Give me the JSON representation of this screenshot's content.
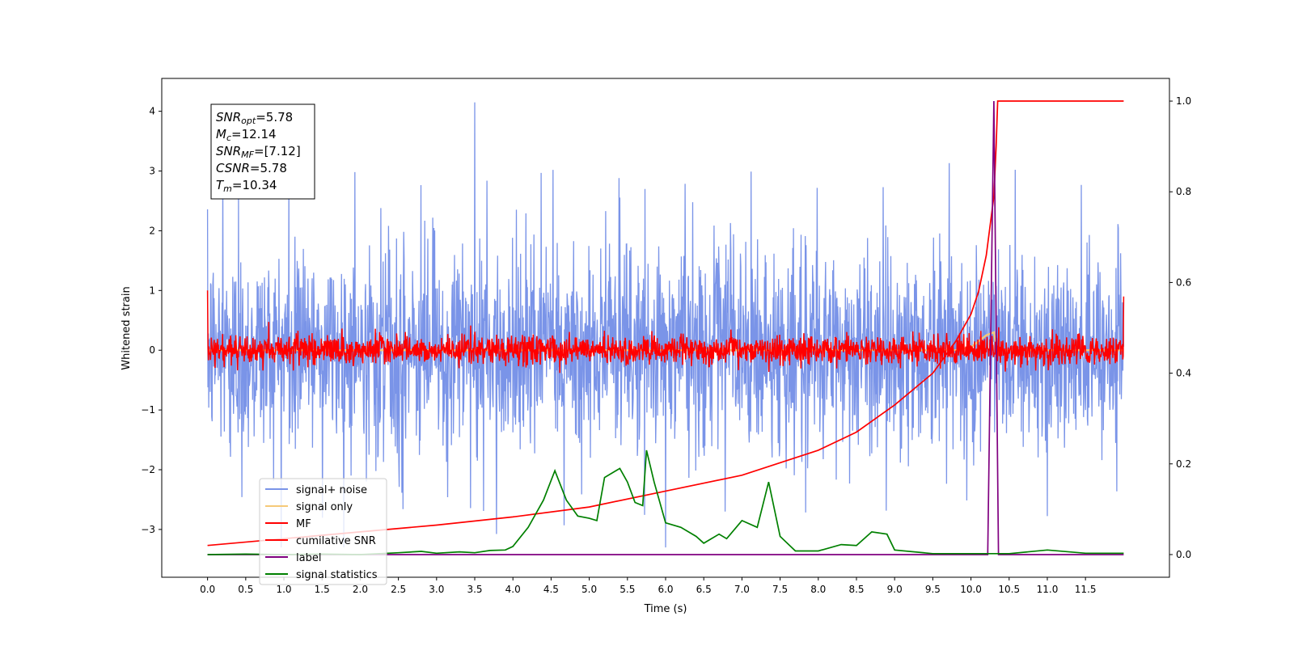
{
  "chart_data": {
    "type": "line",
    "xlabel": "Time (s)",
    "ylabel": "Whitened strain",
    "xlim": [
      -0.6,
      12.6
    ],
    "ylim": [
      -3.8,
      4.55
    ],
    "y2lim": [
      -0.05,
      1.05
    ],
    "x_ticks": [
      "0.0",
      "0.5",
      "1.0",
      "1.5",
      "2.0",
      "2.5",
      "3.0",
      "3.5",
      "4.0",
      "4.5",
      "5.0",
      "5.5",
      "6.0",
      "6.5",
      "7.0",
      "7.5",
      "8.0",
      "8.5",
      "9.0",
      "9.5",
      "10.0",
      "10.5",
      "11.0",
      "11.5"
    ],
    "y_ticks": [
      "4",
      "3",
      "2",
      "1",
      "0",
      "−1",
      "−2",
      "−3"
    ],
    "y2_ticks": [
      "1.0",
      "0.8",
      "0.6",
      "0.4",
      "0.2",
      "0.0"
    ],
    "grid": false,
    "legend_position": "lower-left",
    "annotation": [
      {
        "main": "SNR",
        "sub": "opt",
        "value": "=5.78"
      },
      {
        "main": "M",
        "sub": "c",
        "value": "=12.14"
      },
      {
        "main": "SNR",
        "sub": "MF",
        "value": "=[7.12]"
      },
      {
        "main": "CSNR",
        "sub": "",
        "value": "=5.78"
      },
      {
        "main": "T",
        "sub": "m",
        "value": "=10.34"
      }
    ],
    "series": [
      {
        "name": "signal+ noise",
        "color": "#7a94e8",
        "axis": "left",
        "x_range": [
          0,
          12
        ],
        "amplitude_std": 0.85,
        "max": 4.15,
        "min": -3.3
      },
      {
        "name": "signal only",
        "color": "#f5c978",
        "axis": "left",
        "points": [
          [
            0,
            0
          ],
          [
            9.8,
            0
          ],
          [
            10.0,
            0.05
          ],
          [
            10.2,
            0.25
          ],
          [
            10.3,
            0.3
          ],
          [
            10.34,
            0.0
          ],
          [
            10.36,
            0
          ],
          [
            12,
            0
          ]
        ]
      },
      {
        "name": "MF",
        "color": "#ff0000",
        "axis": "left",
        "x_range": [
          0,
          12
        ],
        "amplitude_std": 0.12,
        "start_value": 1.0,
        "end_value": 0.9
      },
      {
        "name": "cumilative SNR",
        "color": "#ff0000",
        "axis": "right",
        "points": [
          [
            0,
            0.02
          ],
          [
            1,
            0.035
          ],
          [
            2,
            0.05
          ],
          [
            3,
            0.065
          ],
          [
            4,
            0.083
          ],
          [
            5,
            0.105
          ],
          [
            6,
            0.14
          ],
          [
            7,
            0.175
          ],
          [
            8,
            0.23
          ],
          [
            8.5,
            0.27
          ],
          [
            9,
            0.33
          ],
          [
            9.5,
            0.4
          ],
          [
            9.8,
            0.47
          ],
          [
            10.0,
            0.53
          ],
          [
            10.1,
            0.58
          ],
          [
            10.2,
            0.66
          ],
          [
            10.3,
            0.79
          ],
          [
            10.33,
            0.9
          ],
          [
            10.35,
            1.0
          ],
          [
            12,
            1.0
          ]
        ]
      },
      {
        "name": "label",
        "color": "#800080",
        "axis": "right",
        "points": [
          [
            0,
            0.0
          ],
          [
            10.22,
            0.0
          ],
          [
            10.3,
            1.0
          ],
          [
            10.36,
            0.0
          ],
          [
            12,
            0.0
          ]
        ]
      },
      {
        "name": "signal statistics",
        "color": "#008000",
        "axis": "right",
        "points": [
          [
            0,
            0.0
          ],
          [
            0.5,
            0.001
          ],
          [
            1.0,
            0.0
          ],
          [
            1.5,
            0.001
          ],
          [
            2.0,
            0.0
          ],
          [
            2.5,
            0.004
          ],
          [
            2.8,
            0.007
          ],
          [
            3.0,
            0.003
          ],
          [
            3.3,
            0.006
          ],
          [
            3.5,
            0.004
          ],
          [
            3.7,
            0.009
          ],
          [
            3.9,
            0.01
          ],
          [
            4.0,
            0.018
          ],
          [
            4.2,
            0.06
          ],
          [
            4.4,
            0.12
          ],
          [
            4.55,
            0.185
          ],
          [
            4.7,
            0.12
          ],
          [
            4.85,
            0.085
          ],
          [
            5.0,
            0.08
          ],
          [
            5.1,
            0.075
          ],
          [
            5.2,
            0.17
          ],
          [
            5.4,
            0.19
          ],
          [
            5.5,
            0.16
          ],
          [
            5.6,
            0.115
          ],
          [
            5.7,
            0.108
          ],
          [
            5.75,
            0.23
          ],
          [
            5.85,
            0.16
          ],
          [
            6.0,
            0.07
          ],
          [
            6.2,
            0.06
          ],
          [
            6.4,
            0.04
          ],
          [
            6.5,
            0.025
          ],
          [
            6.7,
            0.045
          ],
          [
            6.8,
            0.035
          ],
          [
            7.0,
            0.075
          ],
          [
            7.2,
            0.06
          ],
          [
            7.35,
            0.16
          ],
          [
            7.5,
            0.04
          ],
          [
            7.7,
            0.008
          ],
          [
            8.0,
            0.008
          ],
          [
            8.3,
            0.022
          ],
          [
            8.5,
            0.02
          ],
          [
            8.7,
            0.05
          ],
          [
            8.9,
            0.045
          ],
          [
            9.0,
            0.01
          ],
          [
            9.5,
            0.002
          ],
          [
            10.0,
            0.002
          ],
          [
            10.5,
            0.002
          ],
          [
            11.0,
            0.01
          ],
          [
            11.5,
            0.003
          ],
          [
            12,
            0.003
          ]
        ]
      }
    ]
  }
}
